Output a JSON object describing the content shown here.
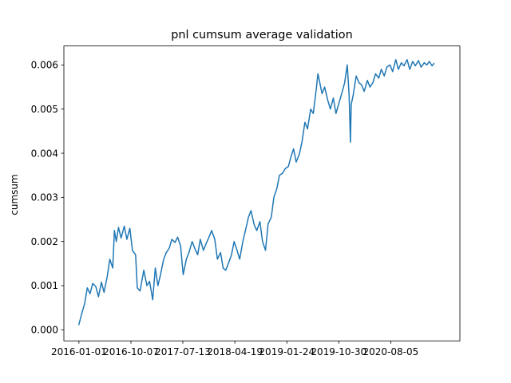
{
  "chart_data": {
    "type": "line",
    "title": "pnl cumsum average validation",
    "xlabel": "",
    "ylabel": "cumsum",
    "x_ticks": [
      "2016-01-01",
      "2016-10-07",
      "2017-07-13",
      "2018-04-19",
      "2019-01-24",
      "2019-10-30",
      "2020-08-05"
    ],
    "y_ticks": [
      "0.000",
      "0.001",
      "0.002",
      "0.003",
      "0.004",
      "0.005",
      "0.006"
    ],
    "ylim": [
      -0.00025,
      0.00643
    ],
    "xlim": [
      "2015-10-12",
      "2021-08-12"
    ],
    "grid": false,
    "colors": {
      "series": "#1f77b4"
    },
    "series": [
      {
        "points": [
          [
            "2016-01-01",
            0.00012
          ],
          [
            "2016-01-15",
            0.00035
          ],
          [
            "2016-02-01",
            0.0006
          ],
          [
            "2016-02-15",
            0.00095
          ],
          [
            "2016-03-01",
            0.00082
          ],
          [
            "2016-03-15",
            0.00105
          ],
          [
            "2016-04-01",
            0.00098
          ],
          [
            "2016-04-15",
            0.00075
          ],
          [
            "2016-05-01",
            0.00108
          ],
          [
            "2016-05-15",
            0.00085
          ],
          [
            "2016-06-01",
            0.0012
          ],
          [
            "2016-06-15",
            0.0016
          ],
          [
            "2016-07-01",
            0.0014
          ],
          [
            "2016-07-10",
            0.00225
          ],
          [
            "2016-07-20",
            0.002
          ],
          [
            "2016-08-01",
            0.00232
          ],
          [
            "2016-08-15",
            0.00208
          ],
          [
            "2016-09-01",
            0.00235
          ],
          [
            "2016-09-15",
            0.00205
          ],
          [
            "2016-10-01",
            0.0023
          ],
          [
            "2016-10-15",
            0.0018
          ],
          [
            "2016-11-01",
            0.0017
          ],
          [
            "2016-11-10",
            0.00095
          ],
          [
            "2016-11-25",
            0.00088
          ],
          [
            "2016-12-15",
            0.00135
          ],
          [
            "2017-01-01",
            0.001
          ],
          [
            "2017-01-15",
            0.0011
          ],
          [
            "2017-02-01",
            0.00068
          ],
          [
            "2017-02-15",
            0.0014
          ],
          [
            "2017-03-01",
            0.001
          ],
          [
            "2017-03-15",
            0.00125
          ],
          [
            "2017-04-01",
            0.0016
          ],
          [
            "2017-04-15",
            0.00175
          ],
          [
            "2017-05-01",
            0.00185
          ],
          [
            "2017-05-15",
            0.00205
          ],
          [
            "2017-06-01",
            0.00198
          ],
          [
            "2017-06-15",
            0.0021
          ],
          [
            "2017-07-01",
            0.0019
          ],
          [
            "2017-07-15",
            0.00125
          ],
          [
            "2017-08-01",
            0.0016
          ],
          [
            "2017-08-15",
            0.00175
          ],
          [
            "2017-09-01",
            0.002
          ],
          [
            "2017-09-15",
            0.00185
          ],
          [
            "2017-10-01",
            0.0017
          ],
          [
            "2017-10-15",
            0.00205
          ],
          [
            "2017-11-01",
            0.0018
          ],
          [
            "2017-11-15",
            0.00195
          ],
          [
            "2017-12-01",
            0.0021
          ],
          [
            "2017-12-15",
            0.00225
          ],
          [
            "2018-01-01",
            0.00205
          ],
          [
            "2018-01-15",
            0.0016
          ],
          [
            "2018-02-01",
            0.00175
          ],
          [
            "2018-02-15",
            0.0014
          ],
          [
            "2018-03-01",
            0.00135
          ],
          [
            "2018-03-15",
            0.0015
          ],
          [
            "2018-04-01",
            0.0017
          ],
          [
            "2018-04-15",
            0.002
          ],
          [
            "2018-05-01",
            0.0018
          ],
          [
            "2018-05-15",
            0.0016
          ],
          [
            "2018-06-01",
            0.002
          ],
          [
            "2018-06-15",
            0.00225
          ],
          [
            "2018-07-01",
            0.00255
          ],
          [
            "2018-07-15",
            0.0027
          ],
          [
            "2018-08-01",
            0.00238
          ],
          [
            "2018-08-15",
            0.00225
          ],
          [
            "2018-09-01",
            0.00245
          ],
          [
            "2018-09-15",
            0.002
          ],
          [
            "2018-10-01",
            0.0018
          ],
          [
            "2018-10-15",
            0.0024
          ],
          [
            "2018-11-01",
            0.00255
          ],
          [
            "2018-11-15",
            0.003
          ],
          [
            "2018-12-01",
            0.0032
          ],
          [
            "2018-12-15",
            0.0035
          ],
          [
            "2019-01-01",
            0.00355
          ],
          [
            "2019-01-15",
            0.00365
          ],
          [
            "2019-02-01",
            0.0037
          ],
          [
            "2019-02-15",
            0.00392
          ],
          [
            "2019-03-01",
            0.0041
          ],
          [
            "2019-03-15",
            0.0038
          ],
          [
            "2019-04-01",
            0.00398
          ],
          [
            "2019-04-15",
            0.00425
          ],
          [
            "2019-05-01",
            0.0047
          ],
          [
            "2019-05-15",
            0.00455
          ],
          [
            "2019-06-01",
            0.005
          ],
          [
            "2019-06-15",
            0.0049
          ],
          [
            "2019-07-01",
            0.00545
          ],
          [
            "2019-07-10",
            0.0058
          ],
          [
            "2019-07-20",
            0.0056
          ],
          [
            "2019-08-01",
            0.00535
          ],
          [
            "2019-08-15",
            0.0055
          ],
          [
            "2019-09-01",
            0.0052
          ],
          [
            "2019-09-15",
            0.005
          ],
          [
            "2019-10-01",
            0.00525
          ],
          [
            "2019-10-15",
            0.0049
          ],
          [
            "2019-11-01",
            0.00515
          ],
          [
            "2019-11-15",
            0.00535
          ],
          [
            "2019-12-01",
            0.0056
          ],
          [
            "2019-12-15",
            0.006
          ],
          [
            "2019-12-25",
            0.0053
          ],
          [
            "2020-01-01",
            0.00425
          ],
          [
            "2020-01-05",
            0.0051
          ],
          [
            "2020-01-15",
            0.0053
          ],
          [
            "2020-02-01",
            0.00575
          ],
          [
            "2020-02-15",
            0.0056
          ],
          [
            "2020-03-01",
            0.00555
          ],
          [
            "2020-03-15",
            0.0054
          ],
          [
            "2020-04-01",
            0.00565
          ],
          [
            "2020-04-15",
            0.0055
          ],
          [
            "2020-05-01",
            0.0056
          ],
          [
            "2020-05-15",
            0.0058
          ],
          [
            "2020-06-01",
            0.0057
          ],
          [
            "2020-06-15",
            0.0059
          ],
          [
            "2020-07-01",
            0.00575
          ],
          [
            "2020-07-15",
            0.00595
          ],
          [
            "2020-08-01",
            0.006
          ],
          [
            "2020-08-15",
            0.00585
          ],
          [
            "2020-09-01",
            0.00612
          ],
          [
            "2020-09-15",
            0.0059
          ],
          [
            "2020-10-01",
            0.00605
          ],
          [
            "2020-10-15",
            0.00598
          ],
          [
            "2020-11-01",
            0.00612
          ],
          [
            "2020-11-15",
            0.0059
          ],
          [
            "2020-12-01",
            0.00608
          ],
          [
            "2020-12-15",
            0.00598
          ],
          [
            "2021-01-01",
            0.0061
          ],
          [
            "2021-01-15",
            0.00595
          ],
          [
            "2021-02-01",
            0.00605
          ],
          [
            "2021-02-15",
            0.006
          ],
          [
            "2021-03-01",
            0.00608
          ],
          [
            "2021-03-15",
            0.00598
          ],
          [
            "2021-03-25",
            0.00603
          ]
        ]
      }
    ]
  }
}
